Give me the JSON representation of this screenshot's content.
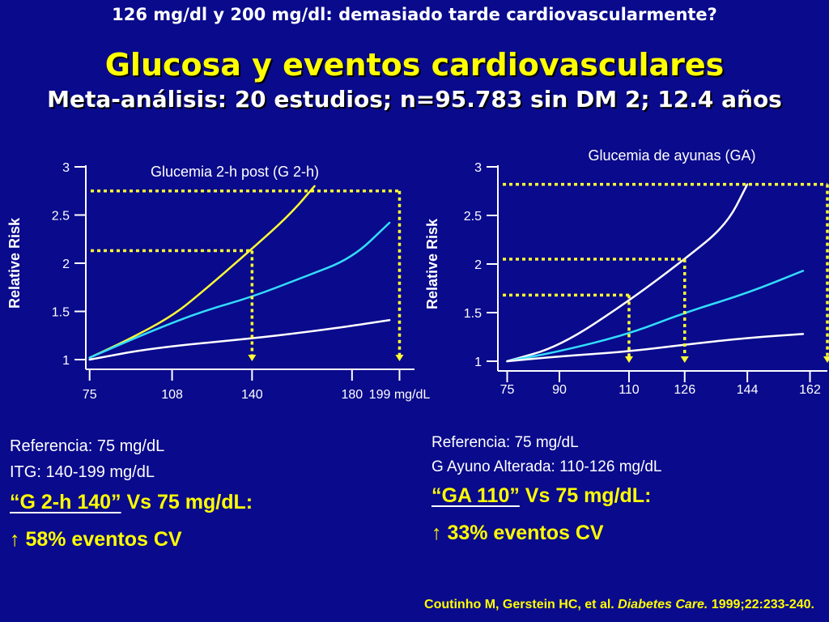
{
  "header": {
    "question": "126 mg/dl y 200 mg/dl: demasiado tarde cardiovascularmente?",
    "title": "Glucosa y eventos cardiovasculares",
    "subtitle": "Meta-análisis: 20 estudios; n=95.783 sin DM 2; 12.4 años"
  },
  "chart_data": [
    {
      "type": "line",
      "title": "Glucemia 2-h post (G 2-h)",
      "ylabel": "Relative Risk",
      "xlabel": "",
      "x_ticks": [
        "75",
        "108",
        "140",
        "180",
        "199 mg/dL"
      ],
      "x_tick_values": [
        75,
        108,
        140,
        180,
        199
      ],
      "y_ticks": [
        "1",
        "1.5",
        "2",
        "2.5",
        "3"
      ],
      "y_tick_values": [
        1,
        1.5,
        2,
        2.5,
        3
      ],
      "xlim": [
        67,
        205
      ],
      "ylim": [
        1,
        3
      ],
      "grid": false,
      "series": [
        {
          "color": "#ffff33",
          "points": [
            [
              75,
              1.02
            ],
            [
              90,
              1.2
            ],
            [
              108,
              1.45
            ],
            [
              120,
              1.7
            ],
            [
              140,
              2.15
            ],
            [
              155,
              2.5
            ],
            [
              165,
              2.8
            ]
          ]
        },
        {
          "color": "#33ddff",
          "points": [
            [
              75,
              1.02
            ],
            [
              100,
              1.3
            ],
            [
              120,
              1.5
            ],
            [
              140,
              1.65
            ],
            [
              160,
              1.85
            ],
            [
              180,
              2.05
            ],
            [
              195,
              2.42
            ]
          ]
        },
        {
          "color": "#ffffff",
          "points": [
            [
              75,
              1.0
            ],
            [
              100,
              1.12
            ],
            [
              140,
              1.22
            ],
            [
              160,
              1.28
            ],
            [
              180,
              1.35
            ],
            [
              195,
              1.41
            ]
          ]
        }
      ],
      "reference_lines": [
        {
          "color": "#ffff33",
          "y": 2.13,
          "x": 140
        },
        {
          "color": "#ffff33",
          "y": 2.75,
          "x": 199
        }
      ]
    },
    {
      "type": "line",
      "title": "Glucemia de ayunas (GA)",
      "ylabel": "Relative Risk",
      "xlabel": "",
      "x_ticks": [
        "75",
        "90",
        "110",
        "126",
        "144",
        "162"
      ],
      "x_tick_values": [
        75,
        90,
        110,
        126,
        144,
        162
      ],
      "y_ticks": [
        "1",
        "1.5",
        "2",
        "2.5",
        "3"
      ],
      "y_tick_values": [
        1,
        1.5,
        2,
        2.5,
        3
      ],
      "xlim": [
        70,
        167
      ],
      "ylim": [
        1,
        3
      ],
      "grid": false,
      "series": [
        {
          "color": "#ffffff",
          "points": [
            [
              75,
              1.0
            ],
            [
              90,
              1.15
            ],
            [
              110,
              1.62
            ],
            [
              126,
              2.05
            ],
            [
              138,
              2.4
            ],
            [
              144,
              2.82
            ]
          ]
        },
        {
          "color": "#33ddff",
          "points": [
            [
              75,
              1.0
            ],
            [
              90,
              1.1
            ],
            [
              110,
              1.28
            ],
            [
              126,
              1.5
            ],
            [
              144,
              1.7
            ],
            [
              160,
              1.93
            ]
          ]
        },
        {
          "color": "#ffffff",
          "points": [
            [
              75,
              1.0
            ],
            [
              90,
              1.05
            ],
            [
              110,
              1.1
            ],
            [
              126,
              1.17
            ],
            [
              144,
              1.24
            ],
            [
              160,
              1.28
            ]
          ]
        }
      ],
      "reference_lines": [
        {
          "color": "#ffff33",
          "y": 1.68,
          "x": 110
        },
        {
          "color": "#ffff33",
          "y": 2.05,
          "x": 126
        },
        {
          "color": "#ffff33",
          "y": 2.82,
          "x": 167
        }
      ]
    }
  ],
  "notes_left": {
    "line1": "Referencia: 75 mg/dL",
    "line2": "ITG: 140-199 mg/dL",
    "compare_emph": "“G 2-h 140”",
    "compare_rest": " Vs 75 mg/dL:",
    "result": "↑ 58% eventos CV"
  },
  "notes_right": {
    "line1": "Referencia: 75 mg/dL",
    "line2": "G Ayuno Alterada: 110-126 mg/dL",
    "compare_emph": "“GA 110”",
    "compare_rest": " Vs 75 mg/dL:",
    "result": "↑ 33% eventos CV"
  },
  "citation": {
    "authors": "Coutinho M, Gerstein HC, et al. ",
    "journal": "Diabetes Care.",
    "ref": " 1999;22:233-240."
  }
}
